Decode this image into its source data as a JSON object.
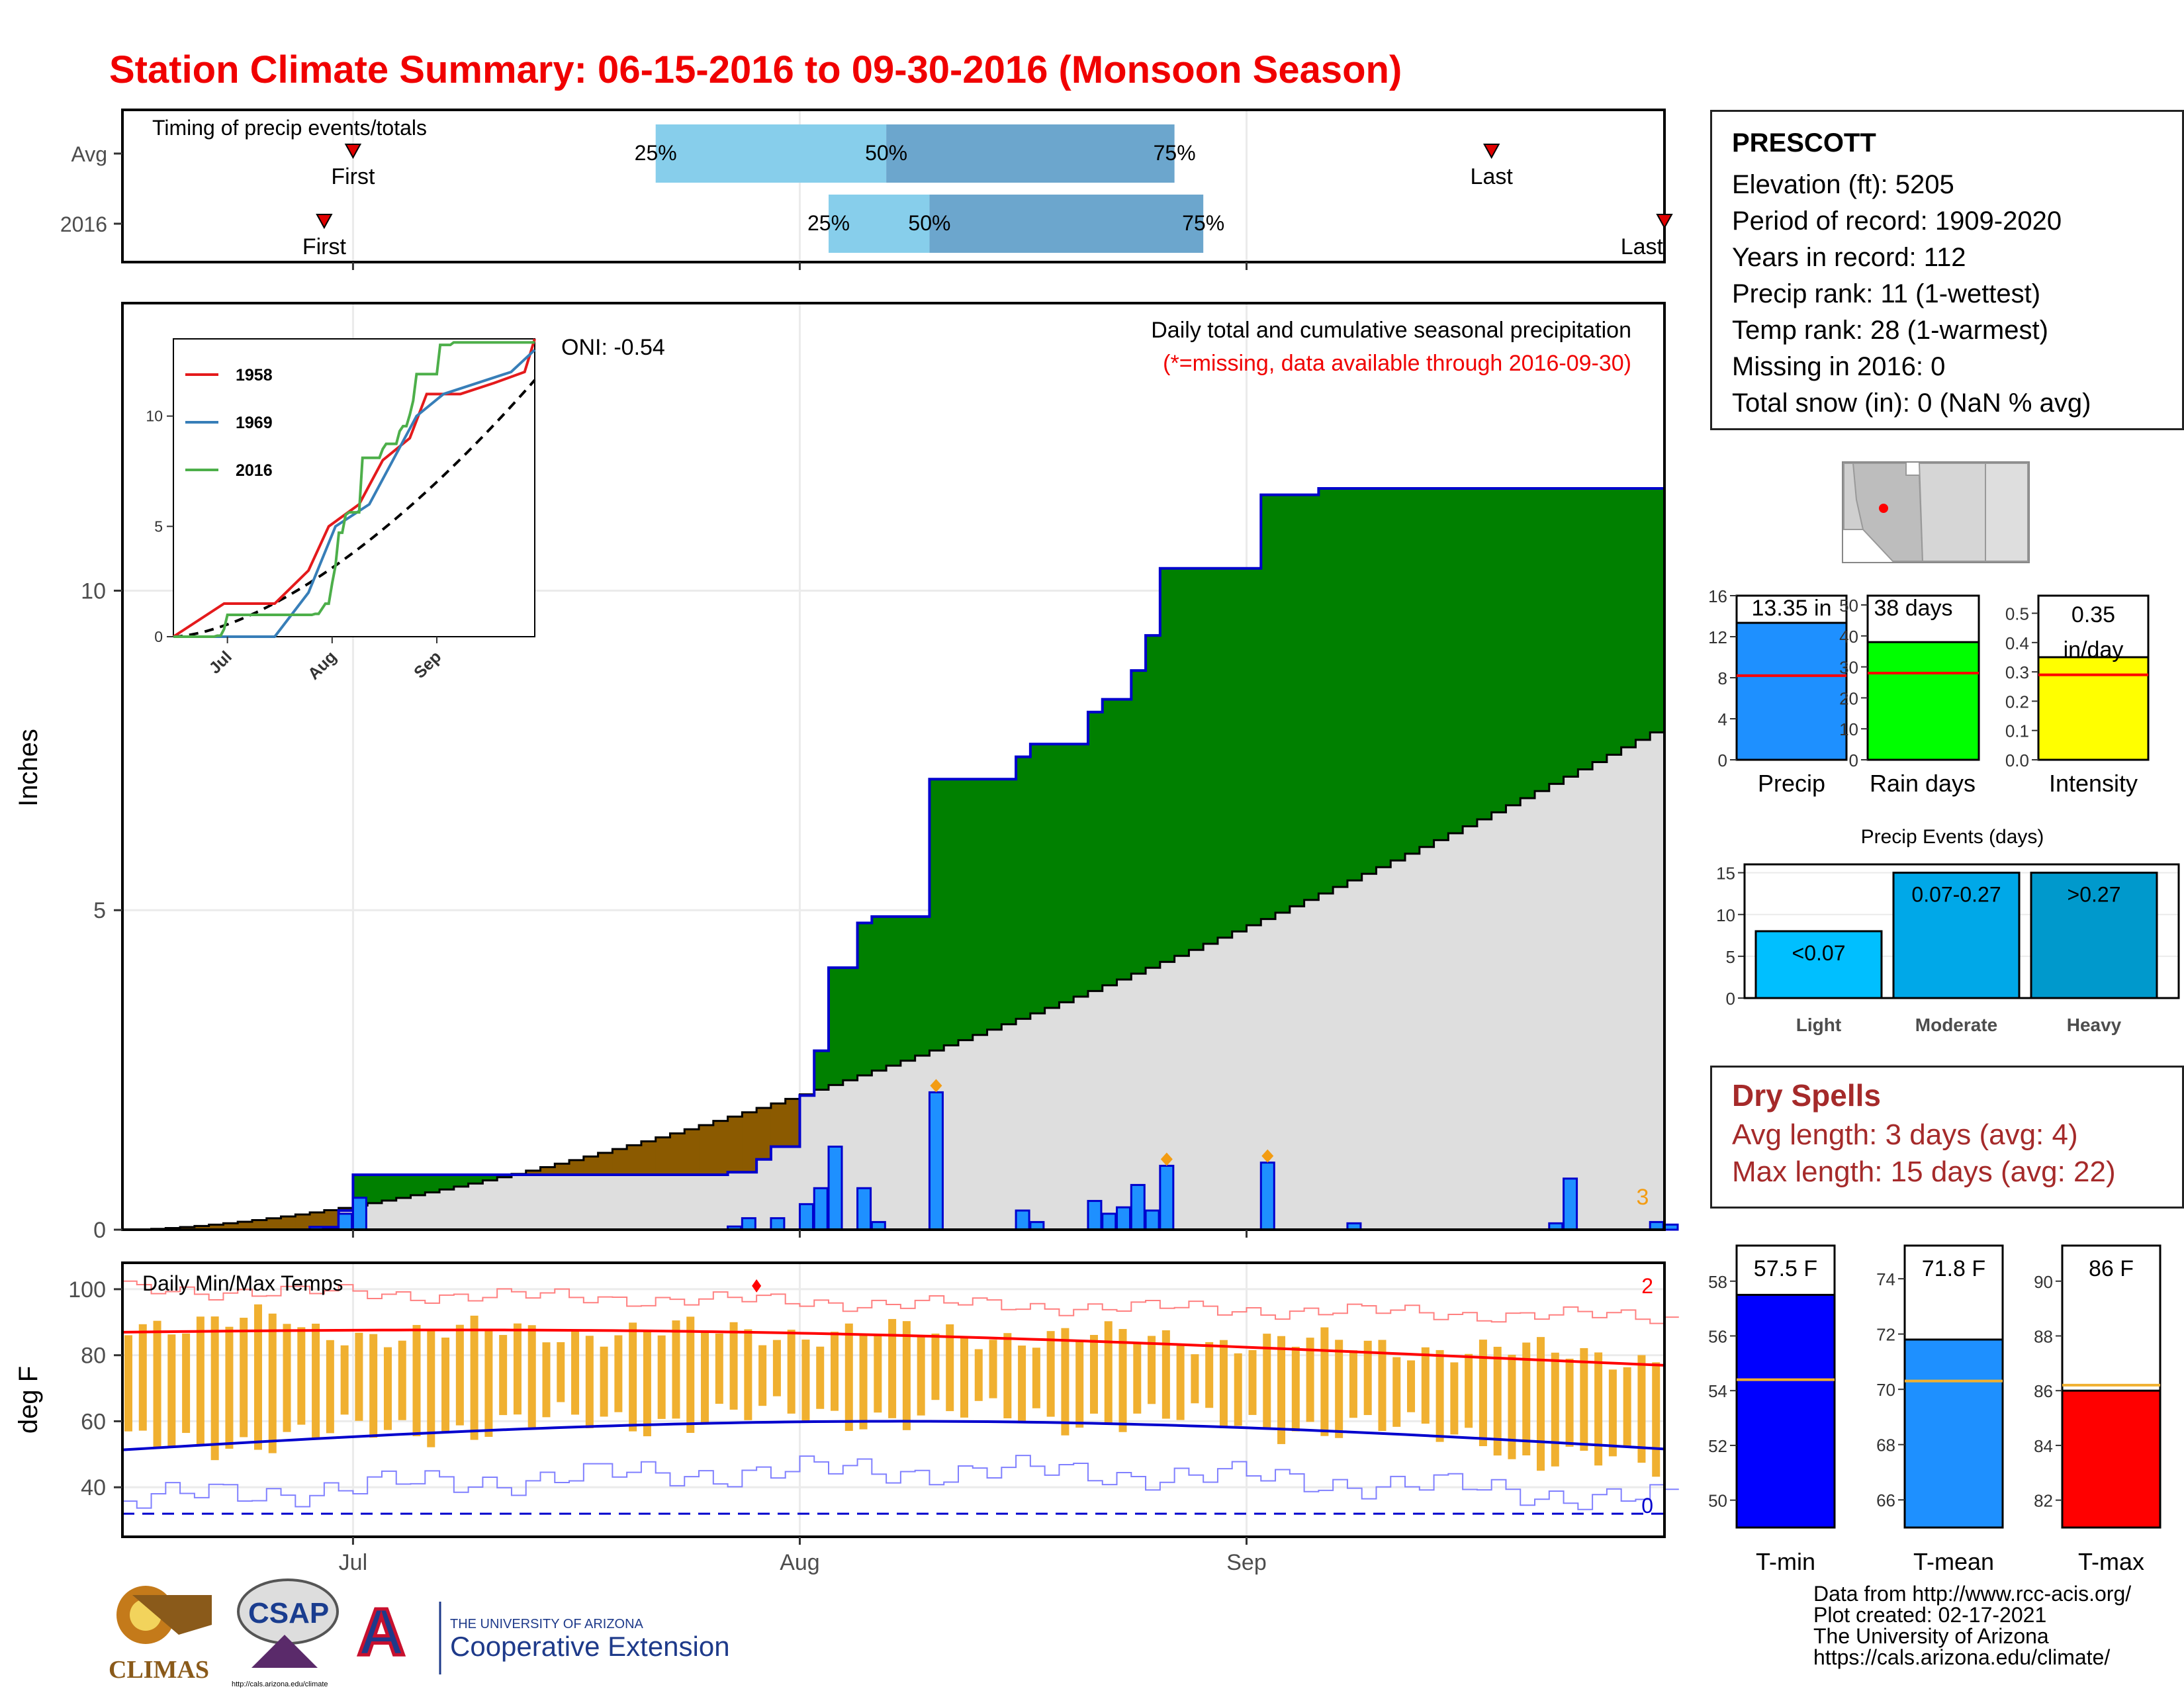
{
  "title": "Station Climate Summary: 06-15-2016 to 09-30-2016 (Monsoon Season)",
  "colors": {
    "accent_red": "#ff0000",
    "green": "#008000",
    "brown": "#8b5a00",
    "blue": "#1e90ff",
    "navy": "#0000cd",
    "gold": "#f0b030",
    "dry_spells": "#a52a2a"
  },
  "station": {
    "name": "PRESCOTT",
    "lines": [
      "Elevation (ft): 5205",
      "Period of record: 1909-2020",
      "Years in record: 112",
      "Precip rank: 11 (1-wettest)",
      "Temp rank: 28 (1-warmest)",
      "Missing in 2016: 0",
      "Total snow (in): 0 (NaN % avg)"
    ]
  },
  "dry_spells": {
    "heading": "Dry Spells",
    "avg": "Avg length: 3 days (avg: 4)",
    "max": "Max length: 15 days (avg: 22)"
  },
  "credits": [
    "Data from http://www.rcc-acis.org/",
    "Plot created: 02-17-2021",
    "The University of Arizona",
    "https://cals.arizona.edu/climate/"
  ],
  "logos": {
    "climas": "CLIMAS",
    "csap": "CSAP",
    "csap_url": "http://cals.arizona.edu/climate",
    "ua_small": "THE UNIVERSITY OF ARIZONA",
    "ua_big": "Cooperative Extension"
  },
  "chart_data": [
    {
      "id": "timing",
      "type": "range",
      "title": "Timing of precip events/totals",
      "categories": [
        "Avg",
        "2016"
      ],
      "xlim": [
        "2016-06-15",
        "2016-09-30"
      ],
      "avg": {
        "first": "2016-07-01",
        "q25": "2016-07-22",
        "q50": "2016-08-07",
        "q75": "2016-08-27",
        "last": "2016-09-18"
      },
      "y2016": {
        "first": "2016-06-29",
        "q25": "2016-08-03",
        "q50": "2016-08-10",
        "q75": "2016-08-29",
        "last": "2016-09-30"
      },
      "labels": {
        "first": "First",
        "last": "Last",
        "q25": "25%",
        "q50": "50%",
        "q75": "75%"
      }
    },
    {
      "id": "precip_main",
      "type": "area",
      "title": "Daily total and cumulative seasonal precipitation",
      "subtitle": "(*=missing, data available through 2016-09-30)",
      "ylabel": "Inches",
      "ylim": [
        0,
        14.5
      ],
      "yticks": [
        0,
        5,
        10
      ],
      "xticks": [
        "Jul",
        "Aug",
        "Sep"
      ],
      "oni": "ONI: -0.54",
      "corner_count": "3",
      "cum_2016": [
        [
          "2016-06-15",
          0
        ],
        [
          "2016-06-28",
          0.04
        ],
        [
          "2016-06-30",
          0.3
        ],
        [
          "2016-07-01",
          0.86
        ],
        [
          "2016-07-11",
          0.86
        ],
        [
          "2016-07-12",
          0.86
        ],
        [
          "2016-07-18",
          0.86
        ],
        [
          "2016-07-27",
          0.9
        ],
        [
          "2016-07-29",
          1.1
        ],
        [
          "2016-07-30",
          1.3
        ],
        [
          "2016-08-01",
          2.1
        ],
        [
          "2016-08-02",
          2.8
        ],
        [
          "2016-08-03",
          4.1
        ],
        [
          "2016-08-05",
          4.8
        ],
        [
          "2016-08-06",
          4.9
        ],
        [
          "2016-08-09",
          4.9
        ],
        [
          "2016-08-10",
          7.05
        ],
        [
          "2016-08-15",
          7.05
        ],
        [
          "2016-08-16",
          7.4
        ],
        [
          "2016-08-17",
          7.6
        ],
        [
          "2016-08-21",
          8.1
        ],
        [
          "2016-08-22",
          8.3
        ],
        [
          "2016-08-24",
          8.75
        ],
        [
          "2016-08-25",
          9.3
        ],
        [
          "2016-08-26",
          10.35
        ],
        [
          "2016-09-01",
          10.35
        ],
        [
          "2016-09-02",
          11.5
        ],
        [
          "2016-09-06",
          11.6
        ],
        [
          "2016-09-30",
          11.6
        ]
      ],
      "cum_normal_end": 7.9,
      "daily_2016": [
        [
          "2016-06-28",
          0.04
        ],
        [
          "2016-06-30",
          0.25
        ],
        [
          "2016-07-01",
          0.5
        ],
        [
          "2016-07-27",
          0.05
        ],
        [
          "2016-07-28",
          0.18
        ],
        [
          "2016-07-30",
          0.18
        ],
        [
          "2016-08-01",
          0.4
        ],
        [
          "2016-08-02",
          0.65
        ],
        [
          "2016-08-03",
          1.3
        ],
        [
          "2016-08-05",
          0.65
        ],
        [
          "2016-08-06",
          0.12
        ],
        [
          "2016-08-10",
          2.15
        ],
        [
          "2016-08-16",
          0.3
        ],
        [
          "2016-08-17",
          0.12
        ],
        [
          "2016-08-21",
          0.45
        ],
        [
          "2016-08-22",
          0.25
        ],
        [
          "2016-08-23",
          0.35
        ],
        [
          "2016-08-24",
          0.7
        ],
        [
          "2016-08-25",
          0.3
        ],
        [
          "2016-08-26",
          1.0
        ],
        [
          "2016-09-02",
          1.05
        ],
        [
          "2016-09-08",
          0.1
        ],
        [
          "2016-09-22",
          0.1
        ],
        [
          "2016-09-23",
          0.8
        ],
        [
          "2016-09-29",
          0.12
        ],
        [
          "2016-09-30",
          0.08
        ]
      ]
    },
    {
      "id": "inset",
      "type": "line",
      "xticks": [
        "Jul",
        "Aug",
        "Sep"
      ],
      "yticks": [
        0,
        5,
        10
      ],
      "ylim": [
        0,
        13.5
      ],
      "series": [
        {
          "name": "1958",
          "color": "#e41a1c"
        },
        {
          "name": "1969",
          "color": "#377eb8"
        },
        {
          "name": "2016",
          "color": "#4daf4a"
        }
      ]
    },
    {
      "id": "precip_bars",
      "type": "bar",
      "categories": [
        "Precip",
        "Rain days",
        "Intensity"
      ],
      "values": [
        13.35,
        38,
        0.35
      ],
      "labels": [
        "13.35 in",
        "38 days",
        "0.35 in/day"
      ],
      "averages": [
        8.2,
        28,
        0.29
      ],
      "yticks": [
        [
          0,
          4,
          8,
          12,
          16
        ],
        [
          0,
          10,
          20,
          30,
          40,
          50
        ],
        [
          0.0,
          0.1,
          0.2,
          0.3,
          0.4,
          0.5
        ]
      ]
    },
    {
      "id": "precip_events",
      "type": "bar",
      "title": "Precip Events (days)",
      "categories": [
        "Light",
        "Moderate",
        "Heavy"
      ],
      "values": [
        8,
        15,
        15
      ],
      "labels": [
        "<0.07",
        "0.07-0.27",
        ">0.27"
      ],
      "yticks": [
        0,
        5,
        10,
        15
      ]
    },
    {
      "id": "temps",
      "type": "bar",
      "title": "Daily Min/Max Temps",
      "ylabel": "deg F",
      "yticks": [
        40,
        60,
        80,
        100
      ],
      "xticks": [
        "Jul",
        "Aug",
        "Sep"
      ],
      "record_high_count": "2",
      "record_low_count": "0"
    },
    {
      "id": "temp_bars",
      "type": "bar",
      "categories": [
        "T-min",
        "T-mean",
        "T-max"
      ],
      "values": [
        57.5,
        71.8,
        86
      ],
      "labels": [
        "57.5 F",
        "71.8 F",
        "86 F"
      ],
      "averages": [
        54.4,
        70.3,
        86.2
      ],
      "yticks": [
        [
          50,
          52,
          54,
          56,
          58
        ],
        [
          66,
          68,
          70,
          72,
          74
        ],
        [
          82,
          84,
          86,
          88,
          90
        ]
      ]
    }
  ]
}
